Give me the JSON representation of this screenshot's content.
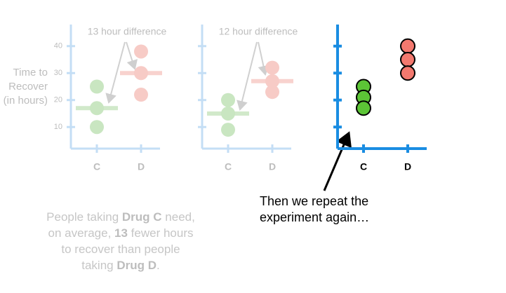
{
  "chart_data": [
    {
      "type": "strip",
      "faded": true,
      "annotation": "13 hour difference",
      "ylabel": [
        "Time to",
        "Recover",
        "(in hours)"
      ],
      "categories": [
        "C",
        "D"
      ],
      "values": [
        [
          25,
          17,
          10
        ],
        [
          38,
          30,
          22
        ]
      ],
      "means": [
        17,
        30
      ],
      "colors": [
        "#c9e6c1",
        "#f7cbc6"
      ],
      "axis_color": "#c4def5",
      "ylim": [
        2,
        48
      ],
      "yticks": [
        10,
        20,
        30,
        40
      ],
      "show_ytick_labels": true
    },
    {
      "type": "strip",
      "faded": true,
      "annotation": "12 hour difference",
      "categories": [
        "C",
        "D"
      ],
      "values": [
        [
          20,
          15,
          9
        ],
        [
          32,
          27,
          23
        ]
      ],
      "means": [
        15,
        27
      ],
      "colors": [
        "#c9e6c1",
        "#f7cbc6"
      ],
      "axis_color": "#c4def5",
      "ylim": [
        2,
        48
      ],
      "yticks": [
        10,
        20,
        30,
        40
      ],
      "show_ytick_labels": false
    },
    {
      "type": "strip",
      "faded": false,
      "categories": [
        "C",
        "D"
      ],
      "values": [
        [
          25,
          21,
          17
        ],
        [
          40,
          35,
          30
        ]
      ],
      "colors": [
        "#5cc536",
        "#f3796f"
      ],
      "axis_color": "#1a8de2",
      "ylim": [
        2,
        48
      ],
      "yticks": [
        10,
        20,
        30,
        40
      ],
      "show_ytick_labels": false
    }
  ],
  "note": [
    "Then we repeat the",
    "experiment again…"
  ],
  "caption": [
    "People taking ",
    "Drug C",
    " need,",
    "on average, ",
    "13",
    " fewer hours",
    "to recover than people",
    "taking ",
    "Drug D",
    "."
  ]
}
